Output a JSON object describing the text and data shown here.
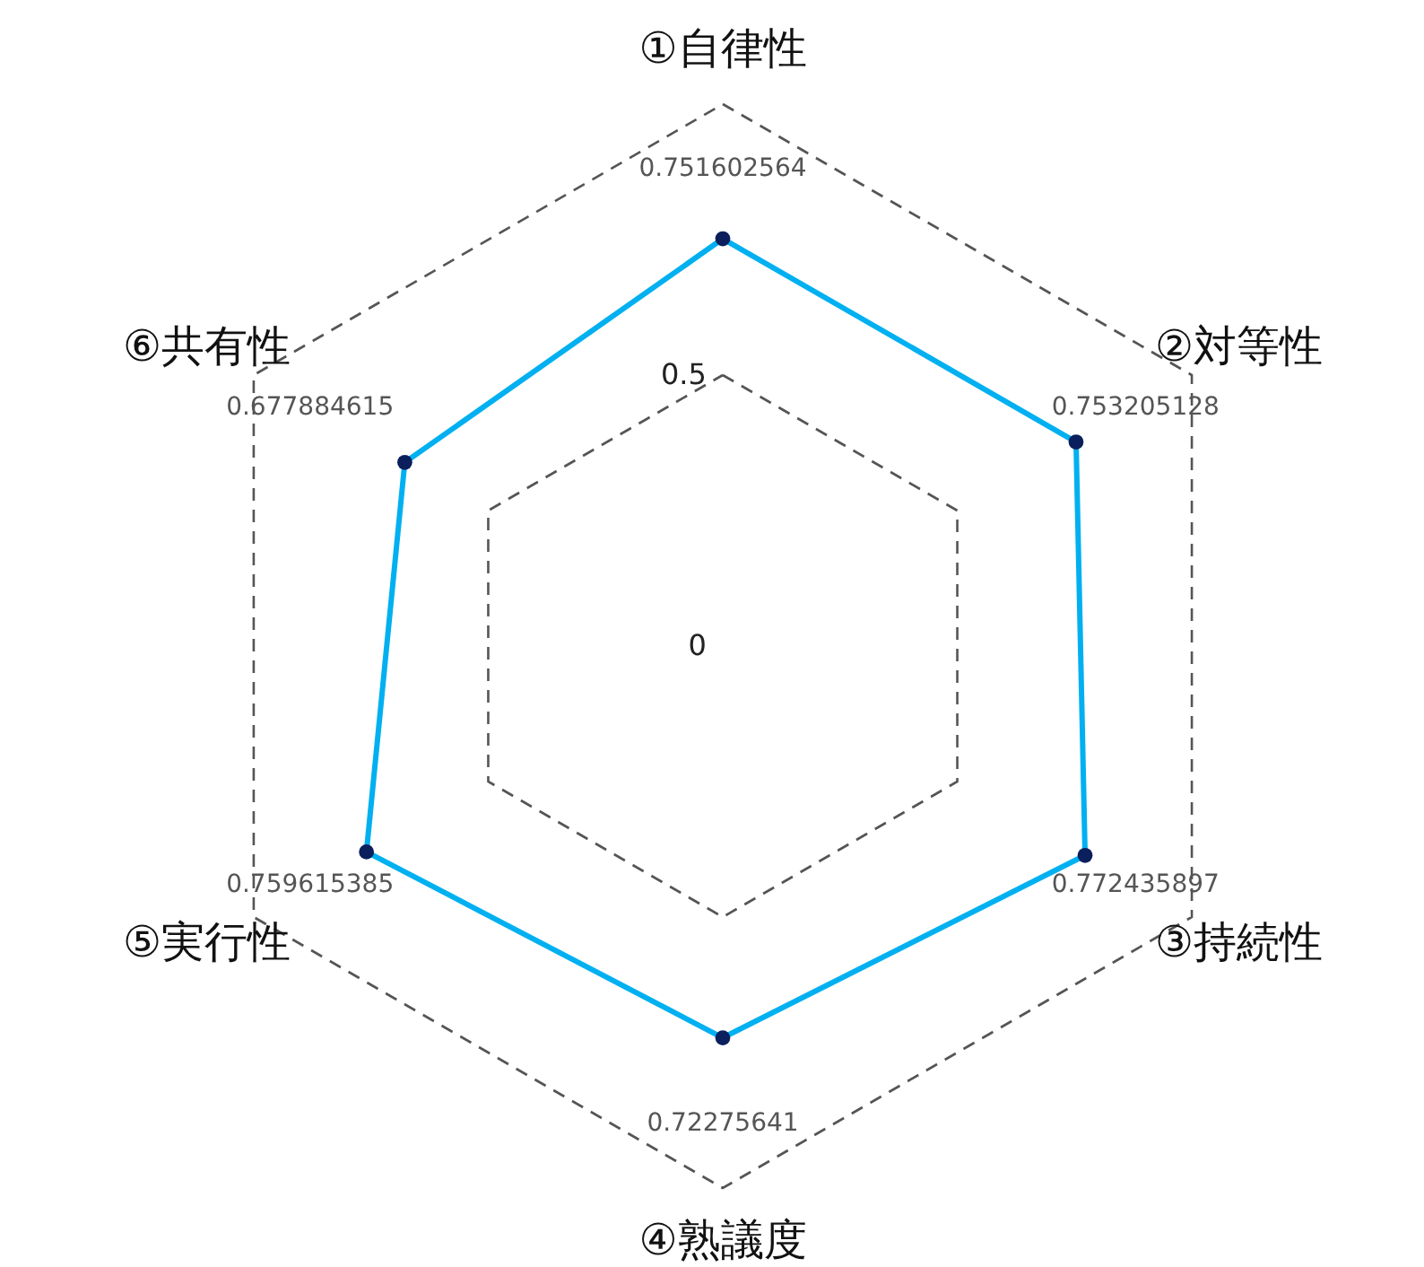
{
  "chart_data": {
    "type": "radar",
    "categories": [
      "①自律性",
      "②対等性",
      "③持続性",
      "④熟議度",
      "⑤実行性",
      "⑥共有性"
    ],
    "series": [
      {
        "color": "#00b0f0",
        "values": [
          0.751602564,
          0.753205128,
          0.772435897,
          0.72275641,
          0.759615385,
          0.677884615
        ]
      }
    ],
    "ylim": [
      0,
      1
    ],
    "yticks": [
      0,
      0.5
    ],
    "grid": true,
    "marker": "circle",
    "line_style": "solid",
    "data_labels": true
  }
}
